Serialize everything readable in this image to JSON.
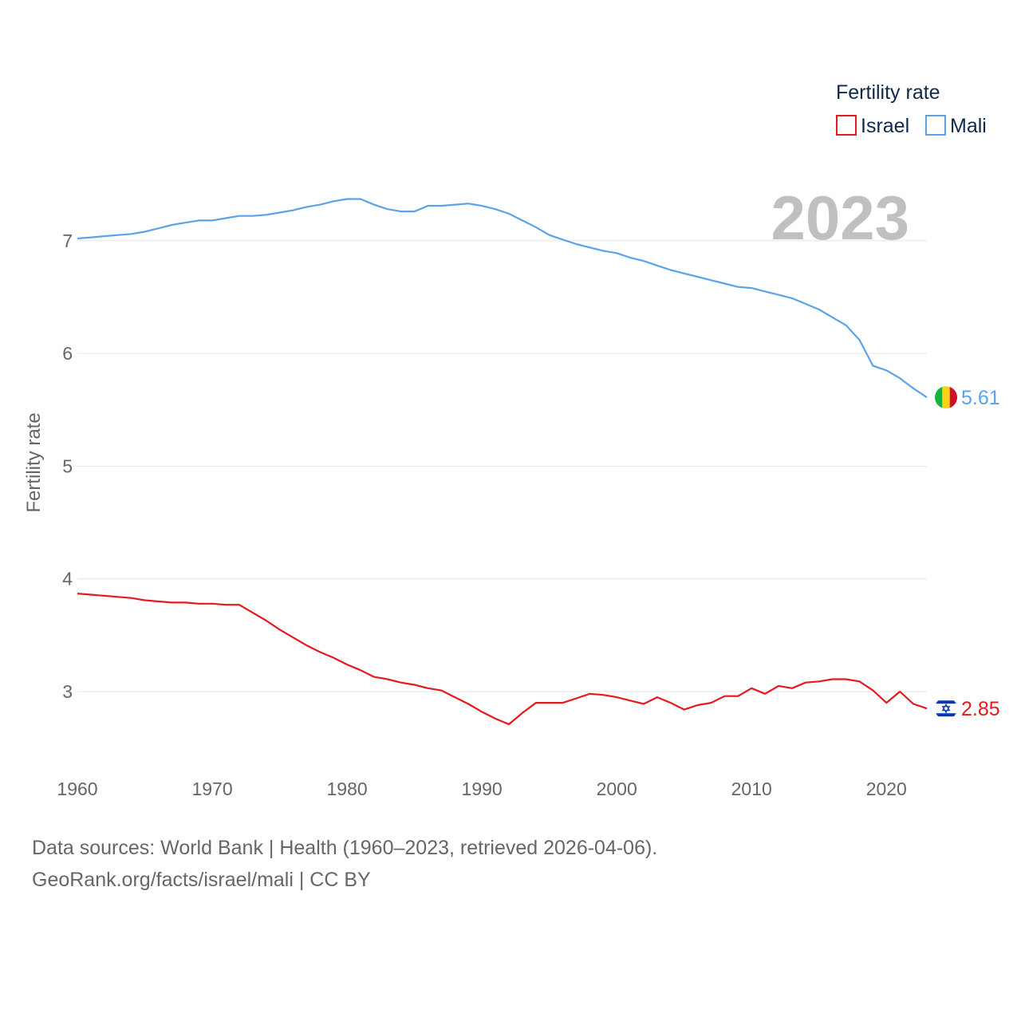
{
  "chart_data": {
    "type": "line",
    "title": "Fertility rate",
    "ylabel": "Fertility rate",
    "xlabel": "",
    "current_year": "2023",
    "xlim": [
      1960,
      2023
    ],
    "ylim": [
      2.5,
      7.6
    ],
    "x_ticks": [
      1960,
      1970,
      1980,
      1990,
      2000,
      2010,
      2020
    ],
    "y_ticks": [
      3,
      4,
      5,
      6,
      7
    ],
    "x": [
      1960,
      1961,
      1962,
      1963,
      1964,
      1965,
      1966,
      1967,
      1968,
      1969,
      1970,
      1971,
      1972,
      1973,
      1974,
      1975,
      1976,
      1977,
      1978,
      1979,
      1980,
      1981,
      1982,
      1983,
      1984,
      1985,
      1986,
      1987,
      1988,
      1989,
      1990,
      1991,
      1992,
      1993,
      1994,
      1995,
      1996,
      1997,
      1998,
      1999,
      2000,
      2001,
      2002,
      2003,
      2004,
      2005,
      2006,
      2007,
      2008,
      2009,
      2010,
      2011,
      2012,
      2013,
      2014,
      2015,
      2016,
      2017,
      2018,
      2019,
      2020,
      2021,
      2022,
      2023
    ],
    "series": [
      {
        "name": "Israel",
        "color": "#e41a1c",
        "end_label": "2.85",
        "flag": "israel-flag-icon",
        "values": [
          3.87,
          3.86,
          3.85,
          3.84,
          3.83,
          3.81,
          3.8,
          3.79,
          3.79,
          3.78,
          3.78,
          3.77,
          3.77,
          3.7,
          3.63,
          3.55,
          3.48,
          3.41,
          3.35,
          3.3,
          3.24,
          3.19,
          3.13,
          3.11,
          3.08,
          3.06,
          3.03,
          3.01,
          2.95,
          2.89,
          2.82,
          2.76,
          2.71,
          2.81,
          2.9,
          2.9,
          2.9,
          2.94,
          2.98,
          2.97,
          2.95,
          2.92,
          2.89,
          2.95,
          2.9,
          2.84,
          2.88,
          2.9,
          2.96,
          2.96,
          3.03,
          2.98,
          3.05,
          3.03,
          3.08,
          3.09,
          3.11,
          3.11,
          3.09,
          3.01,
          2.9,
          3.0,
          2.89,
          2.85
        ]
      },
      {
        "name": "Mali",
        "color": "#5ba3e6",
        "end_label": "5.61",
        "flag": "mali-flag-icon",
        "values": [
          7.02,
          7.03,
          7.04,
          7.05,
          7.06,
          7.08,
          7.11,
          7.14,
          7.16,
          7.18,
          7.18,
          7.2,
          7.22,
          7.22,
          7.23,
          7.25,
          7.27,
          7.3,
          7.32,
          7.35,
          7.37,
          7.37,
          7.32,
          7.28,
          7.26,
          7.26,
          7.31,
          7.31,
          7.32,
          7.33,
          7.31,
          7.28,
          7.24,
          7.18,
          7.12,
          7.05,
          7.01,
          6.97,
          6.94,
          6.91,
          6.89,
          6.85,
          6.82,
          6.78,
          6.74,
          6.71,
          6.68,
          6.65,
          6.62,
          6.59,
          6.58,
          6.55,
          6.52,
          6.49,
          6.44,
          6.39,
          6.32,
          6.25,
          6.12,
          5.89,
          5.85,
          5.78,
          5.69,
          5.61
        ]
      }
    ],
    "legend_position": "top-right"
  },
  "footer": {
    "source_line": "Data sources: World Bank | Health (1960–2023, retrieved 2026-04-06).",
    "url_line": "GeoRank.org/facts/israel/mali | CC BY"
  }
}
